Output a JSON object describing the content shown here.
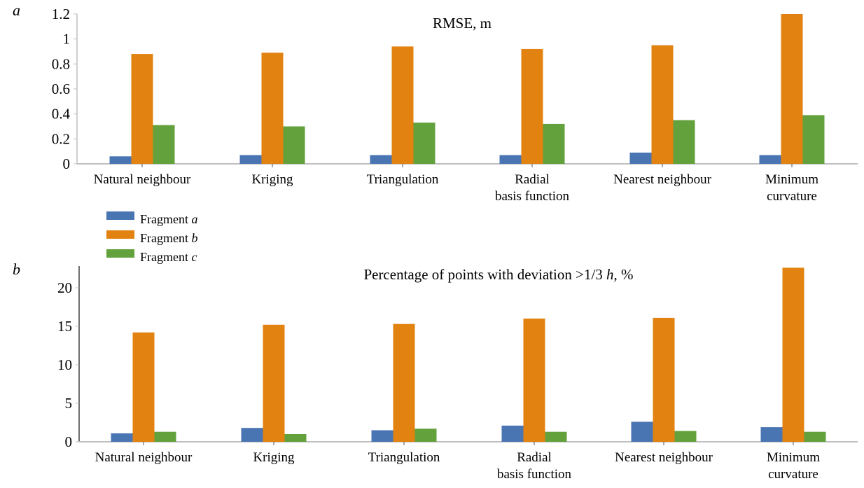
{
  "colors": {
    "fragment_a": "#4a75b3",
    "fragment_b": "#e28311",
    "fragment_c": "#62a13b",
    "axis": "#bfbfbf",
    "yaxis": "#222222"
  },
  "legend": {
    "entries": [
      {
        "prefix": "Fragment ",
        "italic": "a"
      },
      {
        "prefix": "Fragment ",
        "italic": "b"
      },
      {
        "prefix": "Fragment ",
        "italic": "c"
      }
    ]
  },
  "chart_data": [
    {
      "type": "bar",
      "panel_label": "a",
      "title": "RMSE, m",
      "xlabel": "",
      "ylabel": "",
      "ylim": [
        0,
        1.2
      ],
      "yticks": [
        "0",
        "0.2",
        "0.4",
        "0.6",
        "0.8",
        "1",
        "1.2"
      ],
      "grid": false,
      "legend": "below",
      "categories": [
        [
          "Natural neighbour"
        ],
        [
          "Kriging"
        ],
        [
          "Triangulation"
        ],
        [
          "Radial",
          "basis function"
        ],
        [
          "Nearest neighbour"
        ],
        [
          "Minimum",
          "curvature"
        ]
      ],
      "series": [
        {
          "name": "Fragment a",
          "values": [
            0.06,
            0.07,
            0.07,
            0.07,
            0.09,
            0.07
          ]
        },
        {
          "name": "Fragment b",
          "values": [
            0.88,
            0.89,
            0.94,
            0.92,
            0.95,
            1.2
          ]
        },
        {
          "name": "Fragment c",
          "values": [
            0.31,
            0.3,
            0.33,
            0.32,
            0.35,
            0.39
          ]
        }
      ]
    },
    {
      "type": "bar",
      "panel_label": "b",
      "title": "Percentage of points with deviation >1/3 h,  %",
      "title_parts": {
        "before": "Percentage of points with deviation >1/3 ",
        "italic": "h",
        "after": ",  %"
      },
      "xlabel": "",
      "ylabel": "",
      "ylim": [
        0,
        22
      ],
      "yticks": [
        "0",
        "5",
        "10",
        "15",
        "20"
      ],
      "grid": false,
      "legend": "above",
      "categories": [
        [
          "Natural neighbour"
        ],
        [
          "Kriging"
        ],
        [
          "Triangulation"
        ],
        [
          "Radial",
          "basis function"
        ],
        [
          "Nearest neighbour"
        ],
        [
          "Minimum",
          "curvature"
        ]
      ],
      "series": [
        {
          "name": "Fragment a",
          "values": [
            1.1,
            1.8,
            1.5,
            2.1,
            2.6,
            1.9
          ]
        },
        {
          "name": "Fragment b",
          "values": [
            14.2,
            15.2,
            15.3,
            16.0,
            16.1,
            22.6
          ]
        },
        {
          "name": "Fragment c",
          "values": [
            1.3,
            1.0,
            1.7,
            1.3,
            1.4,
            1.3
          ]
        }
      ]
    }
  ]
}
